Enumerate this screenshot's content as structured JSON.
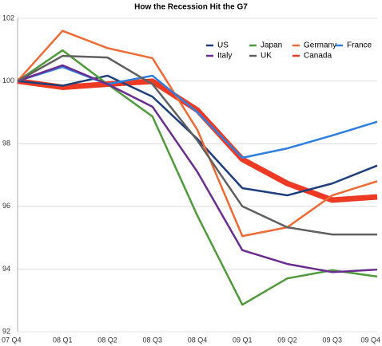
{
  "chart_data": {
    "type": "line",
    "title": "How the Recession Hit the G7",
    "categories": [
      "07 Q4",
      "08 Q1",
      "08 Q2",
      "08 Q3",
      "08 Q4",
      "09 Q1",
      "09 Q2",
      "09 Q3",
      "09 Q4"
    ],
    "ylim": [
      92,
      102
    ],
    "yticks": [
      92,
      94,
      96,
      98,
      100,
      102
    ],
    "grid": true,
    "legend": "top-right",
    "series": [
      {
        "name": "US",
        "color": "#1f3f7a",
        "line_width": 2.5,
        "values": [
          100,
          99.85,
          100.17,
          99.5,
          98.15,
          96.58,
          96.35,
          96.73,
          97.3
        ]
      },
      {
        "name": "Japan",
        "color": "#4f9a3a",
        "line_width": 2.5,
        "values": [
          100,
          100.98,
          99.9,
          98.87,
          95.7,
          92.86,
          93.7,
          93.96,
          93.76
        ]
      },
      {
        "name": "Germany",
        "color": "#ec6a33",
        "line_width": 2.5,
        "values": [
          100,
          101.6,
          101.05,
          100.73,
          98.44,
          95.05,
          95.33,
          96.35,
          96.8
        ]
      },
      {
        "name": "France",
        "color": "#2f7fe0",
        "line_width": 2.5,
        "values": [
          100,
          100.45,
          99.9,
          100.17,
          99.0,
          97.55,
          97.85,
          98.26,
          98.7
        ]
      },
      {
        "name": "Italy",
        "color": "#6a2d8f",
        "line_width": 2.5,
        "values": [
          100,
          100.5,
          99.9,
          99.18,
          97.1,
          94.6,
          94.16,
          93.9,
          93.98
        ]
      },
      {
        "name": "UK",
        "color": "#5f5f5f",
        "line_width": 2.5,
        "values": [
          100,
          100.8,
          100.75,
          99.9,
          98.1,
          96.0,
          95.33,
          95.1,
          95.1
        ]
      },
      {
        "name": "Canada",
        "color": "#ee3a24",
        "line_width": 7,
        "values": [
          100,
          99.8,
          99.9,
          99.99,
          99.07,
          97.5,
          96.73,
          96.2,
          96.3
        ]
      }
    ]
  }
}
